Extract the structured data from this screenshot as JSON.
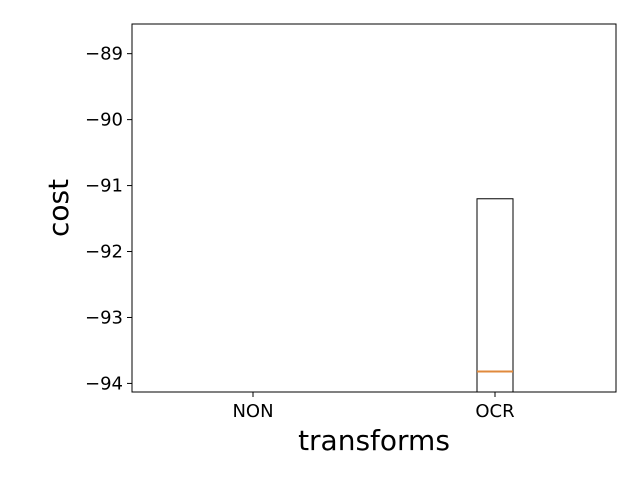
{
  "chart_data": {
    "type": "box",
    "xlabel": "transforms",
    "ylabel": "cost",
    "categories": [
      "NON",
      "OCR"
    ],
    "ylim": [
      -94.13,
      -88.55
    ],
    "yticks": [
      -89,
      -90,
      -91,
      -92,
      -93,
      -94
    ],
    "ytick_labels": [
      "−89",
      "−90",
      "−91",
      "−92",
      "−93",
      "−94"
    ],
    "grid": false,
    "series": [
      {
        "category": "OCR",
        "q1": -94.13,
        "median": -93.82,
        "q3": -91.2,
        "box_color": "#000000",
        "median_color": "#e08a3c"
      }
    ]
  }
}
